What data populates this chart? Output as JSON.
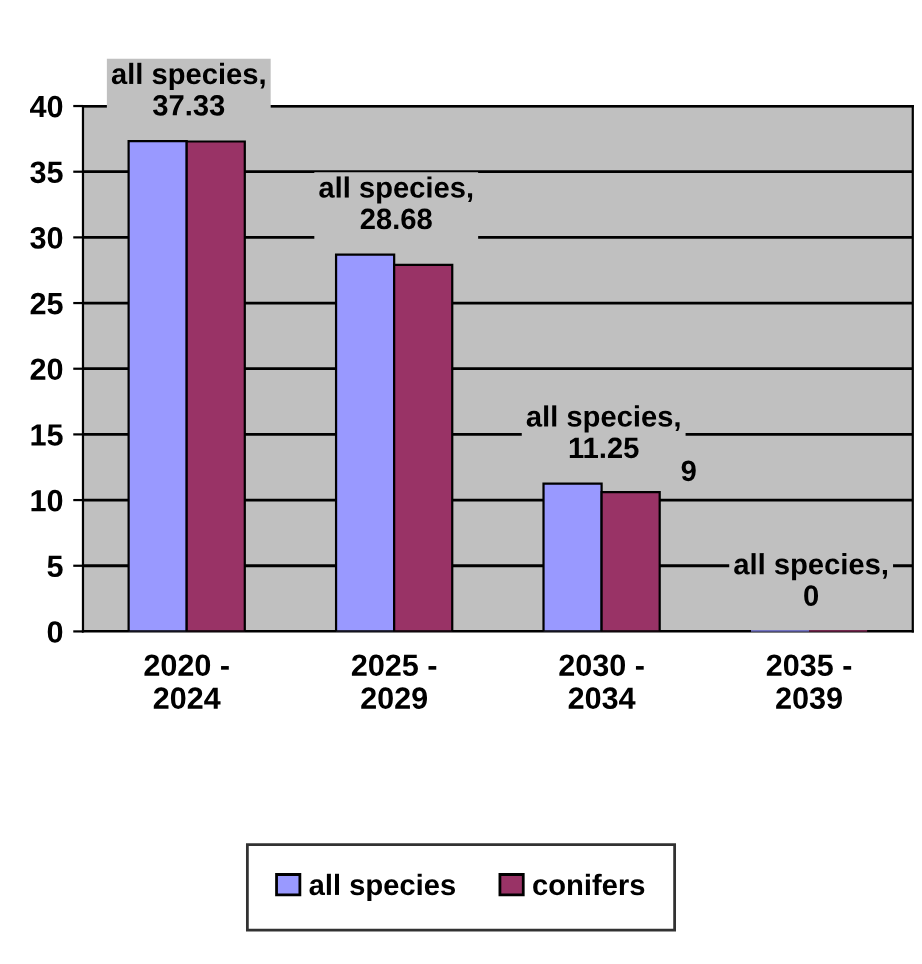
{
  "chart_data": {
    "type": "bar",
    "categories": [
      "2020 -\n2024",
      "2025 -\n2029",
      "2030 -\n2034",
      "2035 -\n2039"
    ],
    "series": [
      {
        "name": "all species",
        "color": "#9999ff",
        "values": [
          37.33,
          28.68,
          11.25,
          0
        ],
        "value_labels": [
          "all species,\n37.33",
          "all species,\n28.68",
          "all species,\n11.25",
          "all species,\n0"
        ]
      },
      {
        "name": "conifers",
        "color": "#993366",
        "values": [
          37.3,
          27.9,
          10.6,
          0
        ]
      }
    ],
    "annotations": [
      {
        "text": "9",
        "x": "2030 -\n2034",
        "y": 11
      }
    ],
    "ylim": [
      0,
      40
    ],
    "yticks": [
      0,
      5,
      10,
      15,
      20,
      25,
      30,
      35,
      40
    ],
    "grid": "y",
    "legend": "bottom"
  }
}
